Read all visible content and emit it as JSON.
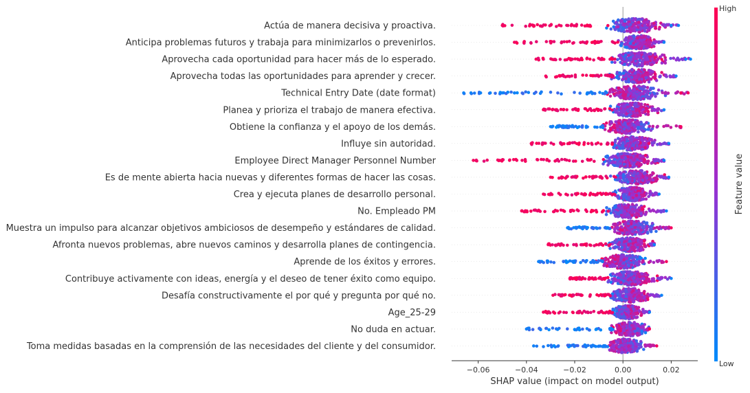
{
  "chart_data": {
    "type": "scatter",
    "subtype": "shap-beeswarm",
    "title": "",
    "xlabel": "SHAP value (impact on model output)",
    "ylabel": "",
    "xlim": [
      -0.071,
      0.031
    ],
    "x_ticks": [
      -0.06,
      -0.04,
      -0.02,
      0.0,
      0.02
    ],
    "x_tick_labels": [
      "−0.06",
      "−0.04",
      "−0.02",
      "0.00",
      "0.02"
    ],
    "zero_line": 0.0,
    "grid": false,
    "colorbar": {
      "label": "Feature value",
      "high_label": "High",
      "low_label": "Low",
      "high_color": "#ff0052",
      "mid_color": "#9b2fd0",
      "low_color": "#008bfb"
    },
    "features": [
      {
        "name": "Actúa de manera decisiva y proactiva.",
        "min": -0.05,
        "max": 0.023,
        "center": 0.005,
        "low_side": "high",
        "spread": 0.011,
        "outliers": [
          -0.05,
          -0.037,
          0.02,
          0.023
        ]
      },
      {
        "name": "Anticipa problemas futuros y trabaja para minimizarlos o prevenirlos.",
        "min": -0.045,
        "max": 0.017,
        "center": 0.006,
        "low_side": "high",
        "spread": 0.007,
        "outliers": [
          -0.045,
          -0.041,
          0.017
        ]
      },
      {
        "name": "Aprovecha cada oportunidad para hacer más de lo esperado.",
        "min": -0.036,
        "max": 0.028,
        "center": 0.007,
        "low_side": "high",
        "spread": 0.01,
        "outliers": [
          -0.036,
          0.026,
          0.028
        ]
      },
      {
        "name": "Aprovecha todas las oportunidades para aprender y crecer.",
        "min": -0.032,
        "max": 0.022,
        "center": 0.006,
        "low_side": "high",
        "spread": 0.009,
        "outliers": [
          -0.032,
          0.022
        ]
      },
      {
        "name": "Technical Entry Date (date format)",
        "min": -0.066,
        "max": 0.027,
        "center": 0.005,
        "low_side": "low",
        "spread": 0.01,
        "outliers": [
          -0.066,
          -0.063,
          -0.059,
          -0.055,
          -0.05,
          -0.045,
          0.024,
          0.027
        ]
      },
      {
        "name": "Planea y prioriza el trabajo de manera efectiva.",
        "min": -0.033,
        "max": 0.017,
        "center": 0.004,
        "low_side": "high",
        "spread": 0.008,
        "outliers": [
          -0.033,
          0.017
        ]
      },
      {
        "name": "Obtiene la confianza y el apoyo de los demás.",
        "min": -0.03,
        "max": 0.024,
        "center": 0.002,
        "low_side": "low",
        "spread": 0.009,
        "outliers": [
          -0.03,
          0.024
        ]
      },
      {
        "name": "Influye sin autoridad.",
        "min": -0.038,
        "max": 0.019,
        "center": 0.004,
        "low_side": "high",
        "spread": 0.008,
        "outliers": [
          -0.038,
          0.019
        ]
      },
      {
        "name": "Employee Direct Manager Personnel Number",
        "min": -0.062,
        "max": 0.017,
        "center": 0.002,
        "low_side": "high",
        "spread": 0.01,
        "outliers": [
          -0.062,
          -0.051,
          -0.047,
          -0.044,
          0.017
        ]
      },
      {
        "name": "Es de mente abierta hacia nuevas y diferentes formas de hacer las cosas.",
        "min": -0.03,
        "max": 0.019,
        "center": 0.006,
        "low_side": "high",
        "spread": 0.009,
        "outliers": [
          -0.03,
          0.019
        ]
      },
      {
        "name": "Crea y ejecuta planes de desarrollo personal.",
        "min": -0.033,
        "max": 0.015,
        "center": 0.004,
        "low_side": "high",
        "spread": 0.007,
        "outliers": [
          -0.033,
          0.015
        ]
      },
      {
        "name": "No. Empleado PM",
        "min": -0.042,
        "max": 0.018,
        "center": 0.002,
        "low_side": "high",
        "spread": 0.008,
        "outliers": [
          -0.042,
          0.018
        ]
      },
      {
        "name": "Muestra un impulso para alcanzar objetivos ambiciosos de desempeño y estándares de calidad.",
        "min": -0.023,
        "max": 0.02,
        "center": 0.004,
        "low_side": "low",
        "spread": 0.009,
        "outliers": [
          -0.023,
          0.02
        ]
      },
      {
        "name": "Afronta nuevos problemas, abre nuevos caminos y desarrolla planes de contingencia.",
        "min": -0.031,
        "max": 0.013,
        "center": 0.003,
        "low_side": "high",
        "spread": 0.008,
        "outliers": [
          -0.031,
          0.013
        ]
      },
      {
        "name": "Aprende de los éxitos y errores.",
        "min": -0.035,
        "max": 0.018,
        "center": 0.0,
        "low_side": "low",
        "spread": 0.008,
        "outliers": [
          -0.035,
          0.018
        ]
      },
      {
        "name": "Contribuye activamente con ideas, energía y el deseo de tener éxito como equipo.",
        "min": -0.022,
        "max": 0.02,
        "center": 0.003,
        "low_side": "high",
        "spread": 0.009,
        "outliers": [
          -0.022,
          0.02
        ]
      },
      {
        "name": "Desafía constructivamente el por qué y pregunta por qué no.",
        "min": -0.029,
        "max": 0.016,
        "center": 0.003,
        "low_side": "high",
        "spread": 0.008,
        "outliers": [
          -0.029,
          0.016
        ]
      },
      {
        "name": "Age_25-29",
        "min": -0.033,
        "max": 0.011,
        "center": 0.002,
        "low_side": "high",
        "spread": 0.006,
        "outliers": [
          -0.033,
          0.011
        ]
      },
      {
        "name": "No duda en actuar.",
        "min": -0.04,
        "max": 0.011,
        "center": 0.003,
        "low_side": "low",
        "spread": 0.007,
        "outliers": [
          -0.04,
          0.011
        ]
      },
      {
        "name": "Toma medidas basadas en la comprensión de las necesidades del cliente y del consumidor.",
        "min": -0.037,
        "max": 0.014,
        "center": 0.001,
        "low_side": "low",
        "spread": 0.007,
        "outliers": [
          -0.037,
          0.014
        ]
      }
    ]
  }
}
